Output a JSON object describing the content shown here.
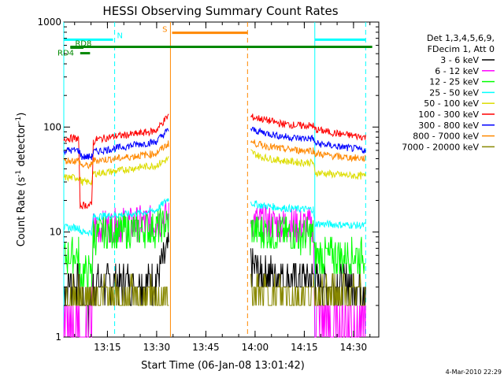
{
  "chart_data": {
    "type": "line",
    "title": "HESSI Observing Summary Count Rates",
    "xlabel": "Start Time (06-Jan-08 13:01:42)",
    "ylabel_main": "Count Rate (s",
    "ylabel_sup1": "-1",
    "ylabel_mid": " detector",
    "ylabel_sup2": "-1",
    "ylabel_end": ")",
    "yscale": "log",
    "ylim": [
      1,
      1000
    ],
    "xlim_minutes": [
      0,
      96
    ],
    "x_ticks": [
      {
        "label": "13:15",
        "min": 13.3
      },
      {
        "label": "13:30",
        "min": 28.3
      },
      {
        "label": "13:45",
        "min": 43.3
      },
      {
        "label": "14:00",
        "min": 58.3
      },
      {
        "label": "14:15",
        "min": 73.3
      },
      {
        "label": "14:30",
        "min": 88.3
      }
    ],
    "y_ticks": [
      {
        "label": "1",
        "v": 1
      },
      {
        "label": "10",
        "v": 10
      },
      {
        "label": "100",
        "v": 100
      },
      {
        "label": "1000",
        "v": 1000
      }
    ],
    "legend_header": [
      "Det 1,3,4,5,6,9,",
      "FDecim 1, Att 0"
    ],
    "series": [
      {
        "name": "3 - 6 keV",
        "color": "#000000",
        "points": [
          [
            0,
            3.3
          ],
          [
            4.5,
            3.3
          ],
          [
            5.5,
            2.1
          ],
          [
            8.5,
            2.1
          ],
          [
            9,
            3.2
          ],
          [
            28,
            3.5
          ],
          [
            32,
            7
          ],
          [
            32.5,
            null
          ],
          [
            56,
            null
          ],
          [
            57,
            5
          ],
          [
            60,
            4.3
          ],
          [
            66,
            3.8
          ],
          [
            72,
            3.6
          ],
          [
            76,
            3.6
          ],
          [
            76.5,
            3.3
          ],
          [
            92,
            3.2
          ]
        ]
      },
      {
        "name": "6 - 12 keV",
        "color": "#ff00ff",
        "points": [
          [
            0,
            1.5
          ],
          [
            4.5,
            1.5
          ],
          [
            5,
            1.2
          ],
          [
            8.5,
            1.2
          ],
          [
            9,
            11
          ],
          [
            16,
            11.5
          ],
          [
            22,
            12
          ],
          [
            28,
            12.5
          ],
          [
            32,
            14
          ],
          [
            32.5,
            null
          ],
          [
            56,
            null
          ],
          [
            57,
            13
          ],
          [
            60,
            12.5
          ],
          [
            66,
            11.8
          ],
          [
            72,
            11.5
          ],
          [
            76,
            11.5
          ],
          [
            76.5,
            1.5
          ],
          [
            92,
            1.5
          ]
        ]
      },
      {
        "name": "12 - 25 keV",
        "color": "#00ff00",
        "points": [
          [
            0,
            6
          ],
          [
            4.5,
            6
          ],
          [
            5,
            4
          ],
          [
            8.5,
            4
          ],
          [
            9,
            9.5
          ],
          [
            16,
            10
          ],
          [
            22,
            10.5
          ],
          [
            28,
            10.8
          ],
          [
            32,
            12
          ],
          [
            32.5,
            null
          ],
          [
            56,
            null
          ],
          [
            57,
            10.5
          ],
          [
            60,
            10
          ],
          [
            66,
            9.8
          ],
          [
            72,
            9.5
          ],
          [
            76,
            9.5
          ],
          [
            76.5,
            6
          ],
          [
            92,
            6
          ]
        ]
      },
      {
        "name": "25 - 50 keV",
        "color": "#00ffff",
        "points": [
          [
            0,
            11
          ],
          [
            4.5,
            11
          ],
          [
            5.5,
            10
          ],
          [
            8.5,
            10
          ],
          [
            9,
            14
          ],
          [
            16,
            14.5
          ],
          [
            22,
            15
          ],
          [
            28,
            16
          ],
          [
            32,
            21
          ],
          [
            32.5,
            null
          ],
          [
            56,
            null
          ],
          [
            57,
            19
          ],
          [
            60,
            18
          ],
          [
            66,
            17
          ],
          [
            72,
            16.5
          ],
          [
            76,
            16.5
          ],
          [
            76.5,
            12
          ],
          [
            92,
            11.5
          ]
        ]
      },
      {
        "name": "50 - 100 keV",
        "color": "#dddd00",
        "points": [
          [
            0,
            33
          ],
          [
            4.5,
            33
          ],
          [
            5.5,
            30
          ],
          [
            8.5,
            30
          ],
          [
            9,
            36
          ],
          [
            16,
            38
          ],
          [
            22,
            41
          ],
          [
            28,
            43
          ],
          [
            32,
            50
          ],
          [
            32.5,
            null
          ],
          [
            56,
            null
          ],
          [
            57,
            58
          ],
          [
            60,
            52
          ],
          [
            66,
            48
          ],
          [
            72,
            46
          ],
          [
            76,
            46
          ],
          [
            76.5,
            37
          ],
          [
            84,
            35
          ],
          [
            92,
            34
          ]
        ]
      },
      {
        "name": "100 - 300 keV",
        "color": "#ff0000",
        "points": [
          [
            0,
            78
          ],
          [
            4.5,
            78
          ],
          [
            5,
            18
          ],
          [
            8.5,
            18
          ],
          [
            9,
            72
          ],
          [
            10,
            76
          ],
          [
            16,
            82
          ],
          [
            22,
            86
          ],
          [
            28,
            92
          ],
          [
            32,
            130
          ],
          [
            32.5,
            null
          ],
          [
            56,
            null
          ],
          [
            57,
            125
          ],
          [
            60,
            120
          ],
          [
            66,
            108
          ],
          [
            72,
            103
          ],
          [
            76,
            103
          ],
          [
            76.5,
            95
          ],
          [
            84,
            86
          ],
          [
            92,
            80
          ]
        ]
      },
      {
        "name": "300 - 800 keV",
        "color": "#0000ff",
        "points": [
          [
            0,
            60
          ],
          [
            4.5,
            60
          ],
          [
            5.5,
            52
          ],
          [
            8.5,
            52
          ],
          [
            9,
            58
          ],
          [
            16,
            63
          ],
          [
            22,
            68
          ],
          [
            28,
            72
          ],
          [
            32,
            95
          ],
          [
            32.5,
            null
          ],
          [
            56,
            null
          ],
          [
            57,
            95
          ],
          [
            60,
            90
          ],
          [
            66,
            82
          ],
          [
            72,
            78
          ],
          [
            76,
            78
          ],
          [
            76.5,
            70
          ],
          [
            84,
            65
          ],
          [
            92,
            60
          ]
        ]
      },
      {
        "name": "800 - 7000 keV",
        "color": "#ff8800",
        "points": [
          [
            0,
            48
          ],
          [
            4.5,
            48
          ],
          [
            5.5,
            43
          ],
          [
            8.5,
            43
          ],
          [
            9,
            48
          ],
          [
            16,
            50
          ],
          [
            22,
            53
          ],
          [
            28,
            56
          ],
          [
            32,
            70
          ],
          [
            32.5,
            null
          ],
          [
            56,
            null
          ],
          [
            57,
            72
          ],
          [
            60,
            68
          ],
          [
            66,
            62
          ],
          [
            72,
            60
          ],
          [
            76,
            60
          ],
          [
            76.5,
            56
          ],
          [
            84,
            52
          ],
          [
            92,
            50
          ]
        ]
      },
      {
        "name": "7000 - 20000 keV",
        "color": "#888800",
        "points": [
          [
            0,
            2.5
          ],
          [
            4.5,
            2.5
          ],
          [
            5.5,
            2.2
          ],
          [
            8.5,
            2.2
          ],
          [
            9,
            2.4
          ],
          [
            28,
            2.4
          ],
          [
            32,
            2.3
          ],
          [
            32.5,
            null
          ],
          [
            56,
            null
          ],
          [
            57,
            2.6
          ],
          [
            76,
            2.5
          ],
          [
            76.5,
            2.5
          ],
          [
            92,
            2.5
          ]
        ]
      }
    ],
    "bars": [
      {
        "label": "N",
        "color": "#00ffff",
        "from_min": 0,
        "to_min": 15,
        "y": 680
      },
      {
        "label": "",
        "color": "#00ffff",
        "from_min": 76.5,
        "to_min": 92,
        "y": 680
      },
      {
        "label": "S",
        "color": "#ff8800",
        "from_min": 33,
        "to_min": 56,
        "y": 790
      },
      {
        "label": "",
        "color": "#008800",
        "from_min": 2,
        "to_min": 94,
        "y": 580
      },
      {
        "label": "RD8",
        "color": "#008800",
        "from_min": 2,
        "to_min": 6,
        "y": 570
      },
      {
        "label": "RD4",
        "color": "#008800",
        "from_min": 5,
        "to_min": 8,
        "y": 505
      }
    ],
    "vlines": [
      {
        "min": 0,
        "color": "#00ffff",
        "style": "solid"
      },
      {
        "min": 15.5,
        "color": "#00ffff",
        "style": "dashed"
      },
      {
        "min": 32.5,
        "color": "#ff8800",
        "style": "solid"
      },
      {
        "min": 56,
        "color": "#ff8800",
        "style": "dashed"
      },
      {
        "min": 76.5,
        "color": "#00ffff",
        "style": "solid"
      },
      {
        "min": 92,
        "color": "#00ffff",
        "style": "dashed"
      }
    ]
  },
  "footer": {
    "date": "4-Mar-2010 22:29"
  }
}
